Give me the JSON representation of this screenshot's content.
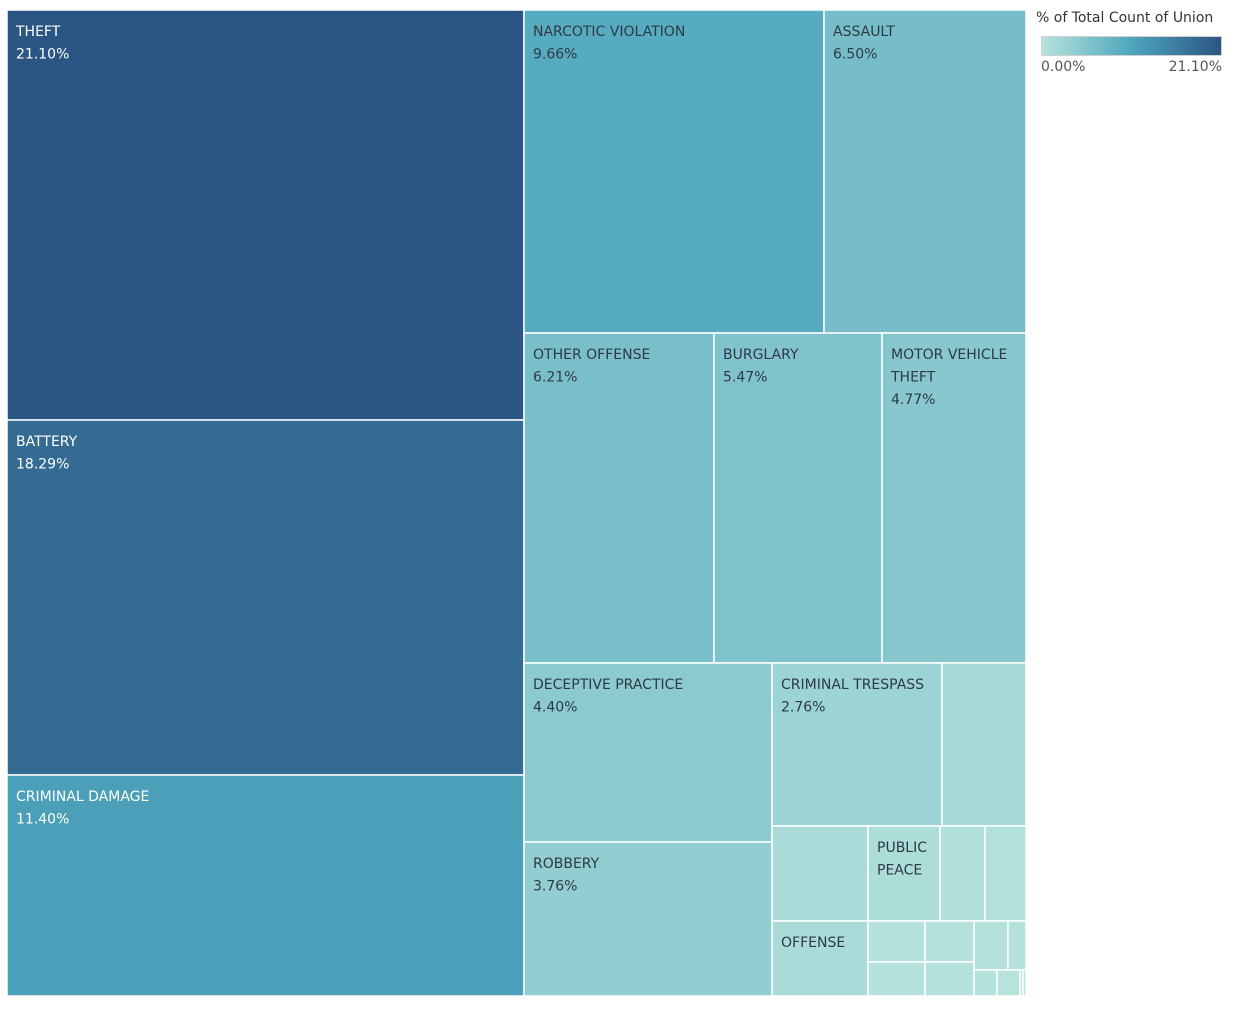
{
  "legend": {
    "title": "% of Total Count of Union",
    "min_label": "0.00%",
    "max_label": "21.10%",
    "color_low": "#b7e3dc",
    "color_mid": "#4ea6bd",
    "color_high": "#2b5583"
  },
  "chart_data": {
    "type": "treemap",
    "measure": "% of Total Count of Union",
    "value_range": [
      0,
      21.1
    ],
    "items": [
      {
        "label": "THEFT",
        "value": 21.1,
        "value_label": "21.10%"
      },
      {
        "label": "BATTERY",
        "value": 18.29,
        "value_label": "18.29%"
      },
      {
        "label": "CRIMINAL DAMAGE",
        "value": 11.4,
        "value_label": "11.40%"
      },
      {
        "label": "NARCOTIC VIOLATION",
        "value": 9.66,
        "value_label": "9.66%"
      },
      {
        "label": "ASSAULT",
        "value": 6.5,
        "value_label": "6.50%"
      },
      {
        "label": "OTHER OFFENSE",
        "value": 6.21,
        "value_label": "6.21%"
      },
      {
        "label": "BURGLARY",
        "value": 5.47,
        "value_label": "5.47%"
      },
      {
        "label": "MOTOR VEHICLE THEFT",
        "value": 4.77,
        "value_label": "4.77%"
      },
      {
        "label": "DECEPTIVE PRACTICE",
        "value": 4.4,
        "value_label": "4.40%"
      },
      {
        "label": "ROBBERY",
        "value": 3.76,
        "value_label": "3.76%"
      },
      {
        "label": "CRIMINAL TRESPASS",
        "value": 2.76,
        "value_label": "2.76%"
      },
      {
        "label": "",
        "value": 1.6,
        "value_label": ""
      },
      {
        "label": "",
        "value": 1.3,
        "value_label": ""
      },
      {
        "label": "PUBLIC PEACE",
        "value": 1.0,
        "value_label": ""
      },
      {
        "label": "",
        "value": 0.6,
        "value_label": ""
      },
      {
        "label": "",
        "value": 0.55,
        "value_label": ""
      },
      {
        "label": "OFFENSE",
        "value": 1.3,
        "value_label": ""
      },
      {
        "label": "",
        "value": 0.3,
        "value_label": ""
      },
      {
        "label": "",
        "value": 0.3,
        "value_label": ""
      },
      {
        "label": "",
        "value": 0.3,
        "value_label": ""
      },
      {
        "label": "",
        "value": 0.3,
        "value_label": ""
      },
      {
        "label": "",
        "value": 0.2,
        "value_label": ""
      },
      {
        "label": "",
        "value": 0.15,
        "value_label": ""
      },
      {
        "label": "",
        "value": 0.1,
        "value_label": ""
      },
      {
        "label": "",
        "value": 0.05,
        "value_label": ""
      },
      {
        "label": "",
        "value": 0.05,
        "value_label": ""
      },
      {
        "label": "",
        "value": 0.05,
        "value_label": ""
      }
    ]
  }
}
